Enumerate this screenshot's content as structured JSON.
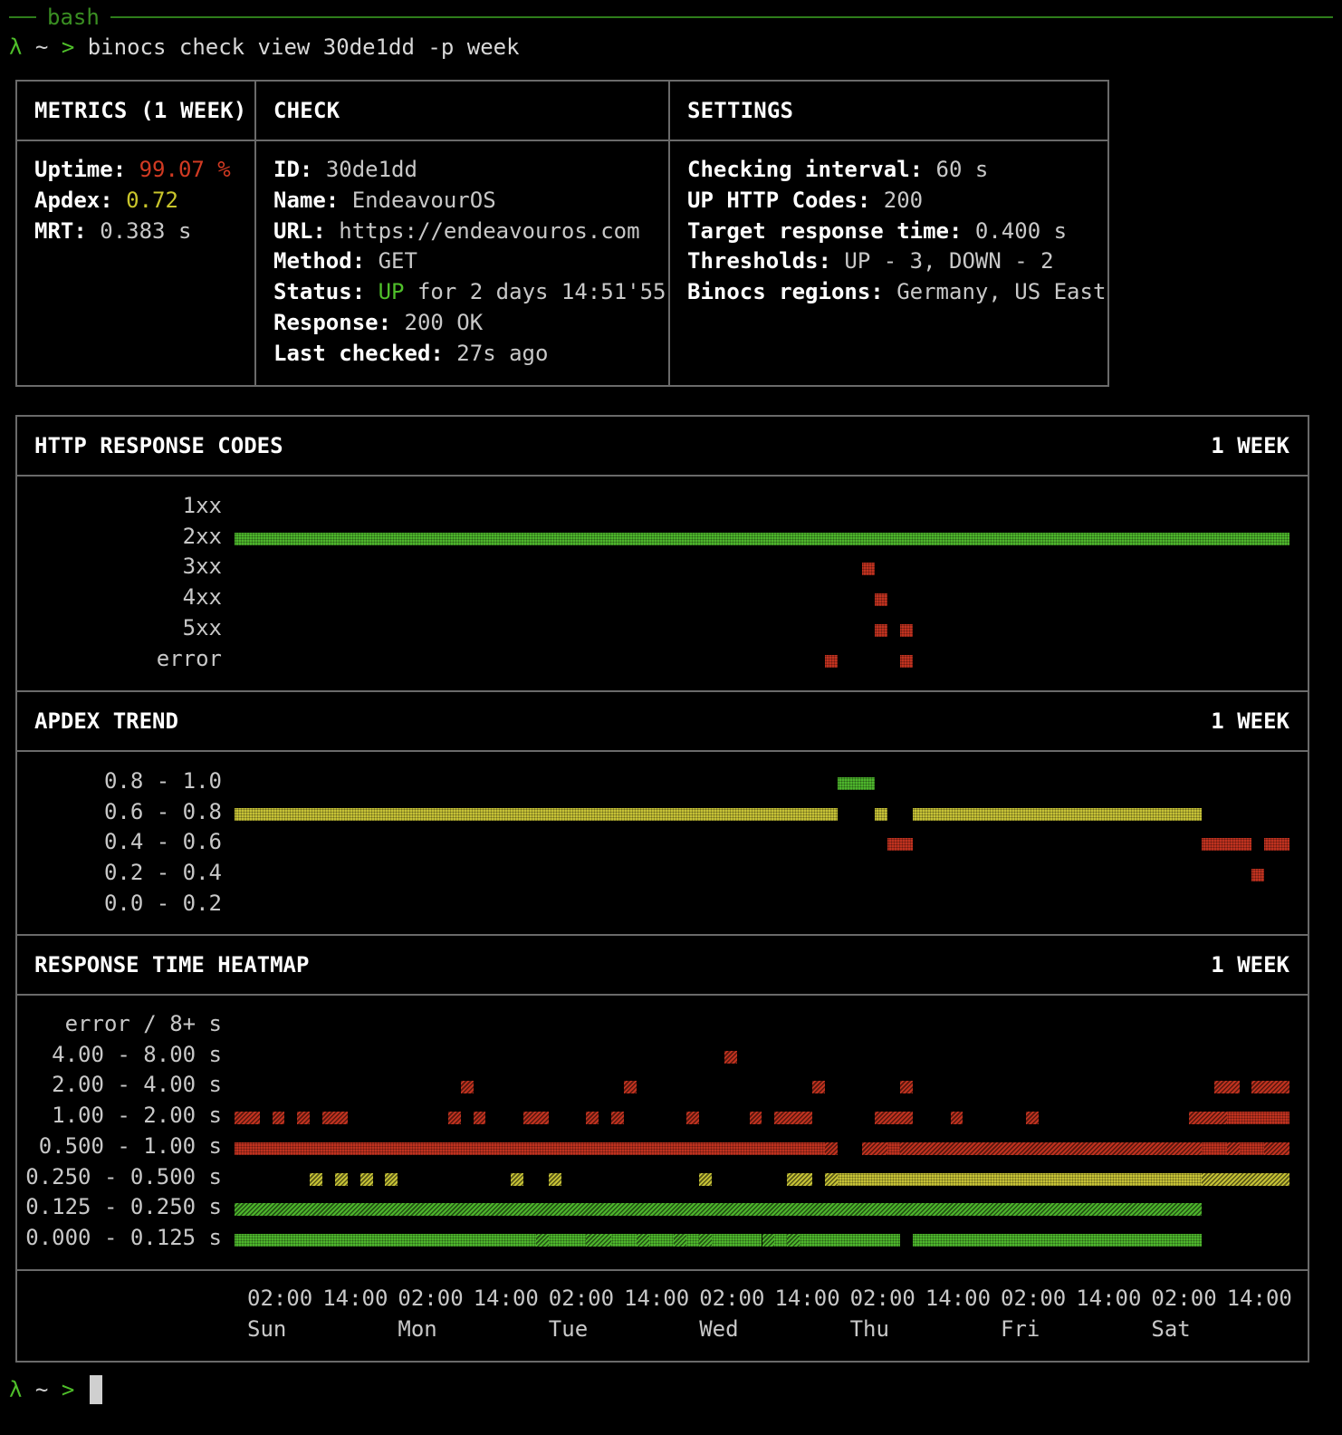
{
  "window": {
    "title": "bash"
  },
  "prompt": {
    "lambda": "λ",
    "tilde": "~",
    "gt": ">",
    "command": "binocs check view 30de1dd -p week"
  },
  "metrics": {
    "header": "METRICS (1 WEEK)",
    "uptime_label": "Uptime:",
    "uptime_value": "99.07 %",
    "apdex_label": "Apdex:",
    "apdex_value": "0.72",
    "mrt_label": "MRT:",
    "mrt_value": "0.383 s"
  },
  "check": {
    "header": "CHECK",
    "id_label": "ID:",
    "id_value": "30de1dd",
    "name_label": "Name:",
    "name_value": "EndeavourOS",
    "url_label": "URL:",
    "url_value": "https://endeavouros.com",
    "method_label": "Method:",
    "method_value": "GET",
    "status_label": "Status:",
    "status_value": "UP",
    "status_duration": "for 2 days 14:51'55",
    "response_label": "Response:",
    "response_value": "200 OK",
    "last_checked_label": "Last checked:",
    "last_checked_value": "27s ago"
  },
  "settings": {
    "header": "SETTINGS",
    "interval_label": "Checking interval:",
    "interval_value": "60 s",
    "codes_label": "UP HTTP Codes:",
    "codes_value": "200",
    "target_label": "Target response time:",
    "target_value": "0.400 s",
    "thresholds_label": "Thresholds:",
    "thresholds_value": "UP - 3, DOWN - 2",
    "regions_label": "Binocs regions:",
    "regions_value": "Germany, US East"
  },
  "colors": {
    "green": "#4db52c",
    "yellow": "#c6c236",
    "red": "#c0321f",
    "border": "#6a6a6a"
  },
  "chart_data": [
    {
      "type": "heatmap",
      "title": "HTTP RESPONSE CODES",
      "period": "1 WEEK",
      "columns": 84,
      "rows": [
        {
          "label": "1xx",
          "segments": []
        },
        {
          "label": "2xx",
          "segments": [
            [
              0,
              83,
              "green",
              "dense"
            ]
          ]
        },
        {
          "label": "3xx",
          "segments": [
            [
              50,
              50,
              "red",
              "dense"
            ]
          ]
        },
        {
          "label": "4xx",
          "segments": [
            [
              51,
              51,
              "red",
              "dense"
            ]
          ]
        },
        {
          "label": "5xx",
          "segments": [
            [
              51,
              51,
              "red",
              "dense"
            ],
            [
              53,
              53,
              "red",
              "dense"
            ]
          ]
        },
        {
          "label": "error",
          "segments": [
            [
              47,
              47,
              "red",
              "dense"
            ],
            [
              53,
              53,
              "red",
              "dense"
            ]
          ]
        }
      ]
    },
    {
      "type": "heatmap",
      "title": "APDEX TREND",
      "period": "1 WEEK",
      "columns": 84,
      "rows": [
        {
          "label": "0.8 - 1.0",
          "segments": [
            [
              48,
              50,
              "green",
              "dense"
            ]
          ]
        },
        {
          "label": "0.6 - 0.8",
          "segments": [
            [
              0,
              47,
              "yellow",
              "dense"
            ],
            [
              51,
              51,
              "yellow",
              "dense"
            ],
            [
              54,
              76,
              "yellow",
              "dense"
            ]
          ]
        },
        {
          "label": "0.4 - 0.6",
          "segments": [
            [
              52,
              53,
              "red",
              "dense"
            ],
            [
              77,
              80,
              "red",
              "dense"
            ],
            [
              82,
              83,
              "red",
              "dense"
            ]
          ]
        },
        {
          "label": "0.2 - 0.4",
          "segments": [
            [
              81,
              81,
              "red",
              "dense"
            ]
          ]
        },
        {
          "label": "0.0 - 0.2",
          "segments": []
        }
      ]
    },
    {
      "type": "heatmap",
      "title": "RESPONSE TIME HEATMAP",
      "period": "1 WEEK",
      "columns": 84,
      "rows": [
        {
          "label": "error / 8+ s",
          "segments": []
        },
        {
          "label": "4.00 - 8.00 s",
          "segments": [
            [
              39,
              39,
              "red",
              "hatch"
            ]
          ]
        },
        {
          "label": "2.00 - 4.00 s",
          "segments": [
            [
              18,
              18,
              "red",
              "hatch"
            ],
            [
              31,
              31,
              "red",
              "hatch"
            ],
            [
              46,
              46,
              "red",
              "hatch"
            ],
            [
              53,
              53,
              "red",
              "hatch"
            ],
            [
              78,
              79,
              "red",
              "hatch"
            ],
            [
              81,
              83,
              "red",
              "hatch"
            ]
          ]
        },
        {
          "label": "1.00 - 2.00 s",
          "segments": [
            [
              0,
              1,
              "red",
              "hatch"
            ],
            [
              3,
              3,
              "red",
              "hatch"
            ],
            [
              5,
              5,
              "red",
              "hatch"
            ],
            [
              7,
              8,
              "red",
              "hatch"
            ],
            [
              17,
              17,
              "red",
              "hatch"
            ],
            [
              19,
              19,
              "red",
              "hatch"
            ],
            [
              23,
              24,
              "red",
              "hatch"
            ],
            [
              28,
              28,
              "red",
              "hatch"
            ],
            [
              30,
              30,
              "red",
              "hatch"
            ],
            [
              36,
              36,
              "red",
              "hatch"
            ],
            [
              41,
              41,
              "red",
              "hatch"
            ],
            [
              43,
              45,
              "red",
              "hatch"
            ],
            [
              51,
              53,
              "red",
              "hatch"
            ],
            [
              57,
              57,
              "red",
              "hatch"
            ],
            [
              63,
              63,
              "red",
              "hatch"
            ],
            [
              76,
              78,
              "red",
              "hatch"
            ],
            [
              79,
              83,
              "red",
              "dense"
            ]
          ]
        },
        {
          "label": "0.500 - 1.00 s",
          "segments": [
            [
              0,
              46,
              "red",
              "dense"
            ],
            [
              47,
              47,
              "red",
              "hatch"
            ],
            [
              50,
              51,
              "red",
              "hatch"
            ],
            [
              52,
              52,
              "red",
              "dense"
            ],
            [
              53,
              76,
              "red",
              "hatch"
            ],
            [
              77,
              78,
              "red",
              "dense"
            ],
            [
              79,
              79,
              "red",
              "hatch"
            ],
            [
              80,
              81,
              "red",
              "dense"
            ],
            [
              82,
              83,
              "red",
              "hatch"
            ]
          ]
        },
        {
          "label": "0.250 - 0.500 s",
          "segments": [
            [
              6,
              6,
              "yellow",
              "hatch"
            ],
            [
              8,
              8,
              "yellow",
              "hatch"
            ],
            [
              10,
              10,
              "yellow",
              "hatch"
            ],
            [
              12,
              12,
              "yellow",
              "hatch"
            ],
            [
              22,
              22,
              "yellow",
              "hatch"
            ],
            [
              25,
              25,
              "yellow",
              "hatch"
            ],
            [
              37,
              37,
              "yellow",
              "hatch"
            ],
            [
              44,
              45,
              "yellow",
              "hatch"
            ],
            [
              47,
              47,
              "yellow",
              "hatch"
            ],
            [
              48,
              76,
              "yellow",
              "dense"
            ],
            [
              77,
              83,
              "yellow",
              "hatch"
            ]
          ]
        },
        {
          "label": "0.125 - 0.250 s",
          "segments": [
            [
              0,
              76,
              "green",
              "hatch"
            ]
          ]
        },
        {
          "label": "0.000 - 0.125 s",
          "segments": [
            [
              0,
              23,
              "green",
              "dense"
            ],
            [
              24,
              24,
              "green",
              "hatch"
            ],
            [
              25,
              27,
              "green",
              "dense"
            ],
            [
              28,
              29,
              "green",
              "hatch"
            ],
            [
              30,
              31,
              "green",
              "dense"
            ],
            [
              32,
              32,
              "green",
              "hatch"
            ],
            [
              33,
              34,
              "green",
              "dense"
            ],
            [
              35,
              35,
              "green",
              "hatch"
            ],
            [
              36,
              36,
              "green",
              "dense"
            ],
            [
              37,
              37,
              "green",
              "hatch"
            ],
            [
              38,
              41,
              "green",
              "dense"
            ],
            [
              42,
              42,
              "green",
              "hatch"
            ],
            [
              43,
              43,
              "green",
              "dense"
            ],
            [
              44,
              44,
              "green",
              "hatch"
            ],
            [
              45,
              52,
              "green",
              "dense"
            ],
            [
              54,
              76,
              "green",
              "dense"
            ]
          ]
        }
      ]
    }
  ],
  "time_axis": {
    "ticks": [
      "02:00",
      "14:00",
      "02:00",
      "14:00",
      "02:00",
      "14:00",
      "02:00",
      "14:00",
      "02:00",
      "14:00",
      "02:00",
      "14:00",
      "02:00",
      "14:00"
    ],
    "days": [
      "Sun",
      "Mon",
      "Tue",
      "Wed",
      "Thu",
      "Fri",
      "Sat"
    ]
  }
}
